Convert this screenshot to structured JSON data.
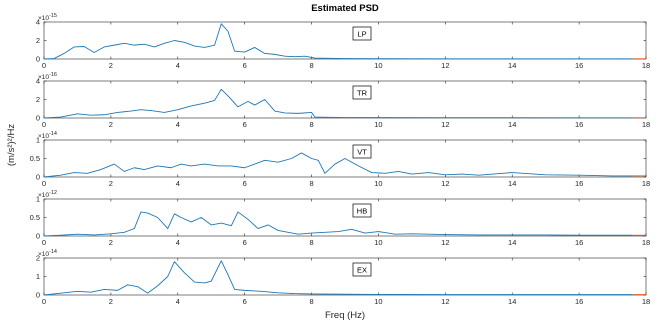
{
  "figure": {
    "title": "Estimated PSD",
    "xlabel": "Freq (Hz)",
    "ylabel": "(m/s²)²/Hz",
    "line_color": "#1f77b4",
    "end_marker_color": "#d95319"
  },
  "chart_data": [
    {
      "type": "line",
      "panel_label": "LP",
      "exponent": "10",
      "exponent_power": "-15",
      "xlim": [
        0,
        18
      ],
      "ylim": [
        0,
        4
      ],
      "yticks": [
        0,
        2,
        4
      ],
      "xticks": [
        0,
        2,
        4,
        6,
        8,
        10,
        12,
        14,
        16,
        18
      ],
      "x": [
        0,
        0.3,
        0.6,
        0.9,
        1.2,
        1.5,
        1.8,
        2.1,
        2.4,
        2.7,
        3.0,
        3.3,
        3.6,
        3.9,
        4.2,
        4.5,
        4.8,
        5.1,
        5.3,
        5.5,
        5.7,
        6.0,
        6.3,
        6.6,
        6.9,
        7.2,
        7.5,
        7.8,
        8.1,
        9.0,
        10.0,
        12.0,
        14.0,
        16.0,
        17.6
      ],
      "y": [
        0,
        0.05,
        0.6,
        1.3,
        1.35,
        0.7,
        1.3,
        1.5,
        1.7,
        1.5,
        1.6,
        1.3,
        1.7,
        2.0,
        1.8,
        1.4,
        1.25,
        1.5,
        3.8,
        3.0,
        0.85,
        0.75,
        1.25,
        0.6,
        0.5,
        0.3,
        0.25,
        0.3,
        0.1,
        0.05,
        0.03,
        0.02,
        0.02,
        0.02,
        0.02
      ]
    },
    {
      "type": "line",
      "panel_label": "TR",
      "exponent": "10",
      "exponent_power": "-16",
      "xlim": [
        0,
        18
      ],
      "ylim": [
        0,
        4
      ],
      "yticks": [
        0,
        2,
        4
      ],
      "xticks": [
        0,
        2,
        4,
        6,
        8,
        10,
        12,
        14,
        16,
        18
      ],
      "x": [
        0,
        0.5,
        1.0,
        1.4,
        1.8,
        2.2,
        2.6,
        2.9,
        3.2,
        3.6,
        4.0,
        4.4,
        4.8,
        5.1,
        5.3,
        5.5,
        5.8,
        6.1,
        6.3,
        6.6,
        6.9,
        7.2,
        7.6,
        8.0,
        8.1,
        9.0,
        10.0,
        12.0,
        14.0,
        16.0,
        17.6
      ],
      "y": [
        0,
        0.1,
        0.45,
        0.3,
        0.35,
        0.6,
        0.75,
        0.9,
        0.8,
        0.6,
        0.9,
        1.3,
        1.6,
        1.9,
        3.1,
        2.4,
        1.2,
        1.8,
        1.4,
        2.0,
        0.75,
        0.55,
        0.5,
        0.6,
        0.1,
        0.05,
        0.04,
        0.03,
        0.03,
        0.02,
        0.02
      ]
    },
    {
      "type": "line",
      "panel_label": "VT",
      "exponent": "10",
      "exponent_power": "-14",
      "xlim": [
        0,
        18
      ],
      "ylim": [
        0,
        1
      ],
      "yticks": [
        0,
        0.5,
        1
      ],
      "xticks": [
        0,
        2,
        4,
        6,
        8,
        10,
        12,
        14,
        16,
        18
      ],
      "x": [
        0,
        0.5,
        0.9,
        1.3,
        1.7,
        2.1,
        2.4,
        2.7,
        3.0,
        3.4,
        3.8,
        4.1,
        4.4,
        4.8,
        5.2,
        5.6,
        6.0,
        6.3,
        6.6,
        7.0,
        7.4,
        7.7,
        8.0,
        8.2,
        8.4,
        8.7,
        9.0,
        9.4,
        9.8,
        10.2,
        10.6,
        11.0,
        11.5,
        12.0,
        12.5,
        13.0,
        14.0,
        15.0,
        16.0,
        17.0,
        17.6
      ],
      "y": [
        0,
        0.05,
        0.12,
        0.1,
        0.2,
        0.35,
        0.15,
        0.25,
        0.2,
        0.3,
        0.25,
        0.35,
        0.3,
        0.35,
        0.3,
        0.3,
        0.25,
        0.35,
        0.45,
        0.4,
        0.5,
        0.65,
        0.5,
        0.45,
        0.1,
        0.35,
        0.5,
        0.3,
        0.12,
        0.1,
        0.15,
        0.08,
        0.12,
        0.06,
        0.08,
        0.05,
        0.12,
        0.06,
        0.05,
        0.03,
        0.03
      ]
    },
    {
      "type": "line",
      "panel_label": "HB",
      "exponent": "10",
      "exponent_power": "-12",
      "xlim": [
        0,
        18
      ],
      "ylim": [
        0,
        1
      ],
      "yticks": [
        0,
        0.5,
        1
      ],
      "xticks": [
        0,
        2,
        4,
        6,
        8,
        10,
        12,
        14,
        16,
        18
      ],
      "x": [
        0,
        0.5,
        1.0,
        1.5,
        2.0,
        2.4,
        2.7,
        2.9,
        3.1,
        3.4,
        3.7,
        3.9,
        4.1,
        4.4,
        4.7,
        5.0,
        5.3,
        5.6,
        5.8,
        6.1,
        6.4,
        6.7,
        7.0,
        7.3,
        7.6,
        8.0,
        8.4,
        8.8,
        9.2,
        9.6,
        10.0,
        10.5,
        11.0,
        12.0,
        13.0,
        14.0,
        15.0,
        16.0,
        17.0,
        17.6
      ],
      "y": [
        0,
        0.02,
        0.05,
        0.03,
        0.06,
        0.1,
        0.2,
        0.65,
        0.62,
        0.5,
        0.2,
        0.6,
        0.5,
        0.38,
        0.5,
        0.3,
        0.35,
        0.28,
        0.65,
        0.45,
        0.2,
        0.3,
        0.15,
        0.1,
        0.05,
        0.08,
        0.1,
        0.12,
        0.18,
        0.08,
        0.12,
        0.05,
        0.06,
        0.04,
        0.03,
        0.03,
        0.03,
        0.02,
        0.02,
        0.02
      ]
    },
    {
      "type": "line",
      "panel_label": "EX",
      "exponent": "10",
      "exponent_power": "-14",
      "xlim": [
        0,
        18
      ],
      "ylim": [
        0,
        2
      ],
      "yticks": [
        0,
        1,
        2
      ],
      "xticks": [
        0,
        2,
        4,
        6,
        8,
        10,
        12,
        14,
        16,
        18
      ],
      "x": [
        0,
        0.5,
        1.0,
        1.4,
        1.8,
        2.2,
        2.5,
        2.8,
        3.1,
        3.4,
        3.7,
        3.9,
        4.2,
        4.5,
        4.8,
        5.0,
        5.3,
        5.5,
        5.7,
        6.0,
        6.5,
        7.0,
        7.5,
        8.0,
        9.0,
        10.0,
        12.0,
        14.0,
        16.0,
        17.6
      ],
      "y": [
        0,
        0.1,
        0.2,
        0.15,
        0.3,
        0.25,
        0.55,
        0.45,
        0.1,
        0.5,
        1.0,
        1.8,
        1.2,
        0.7,
        0.65,
        0.75,
        1.85,
        1.1,
        0.3,
        0.25,
        0.2,
        0.12,
        0.08,
        0.06,
        0.04,
        0.03,
        0.02,
        0.02,
        0.02,
        0.02
      ]
    }
  ]
}
